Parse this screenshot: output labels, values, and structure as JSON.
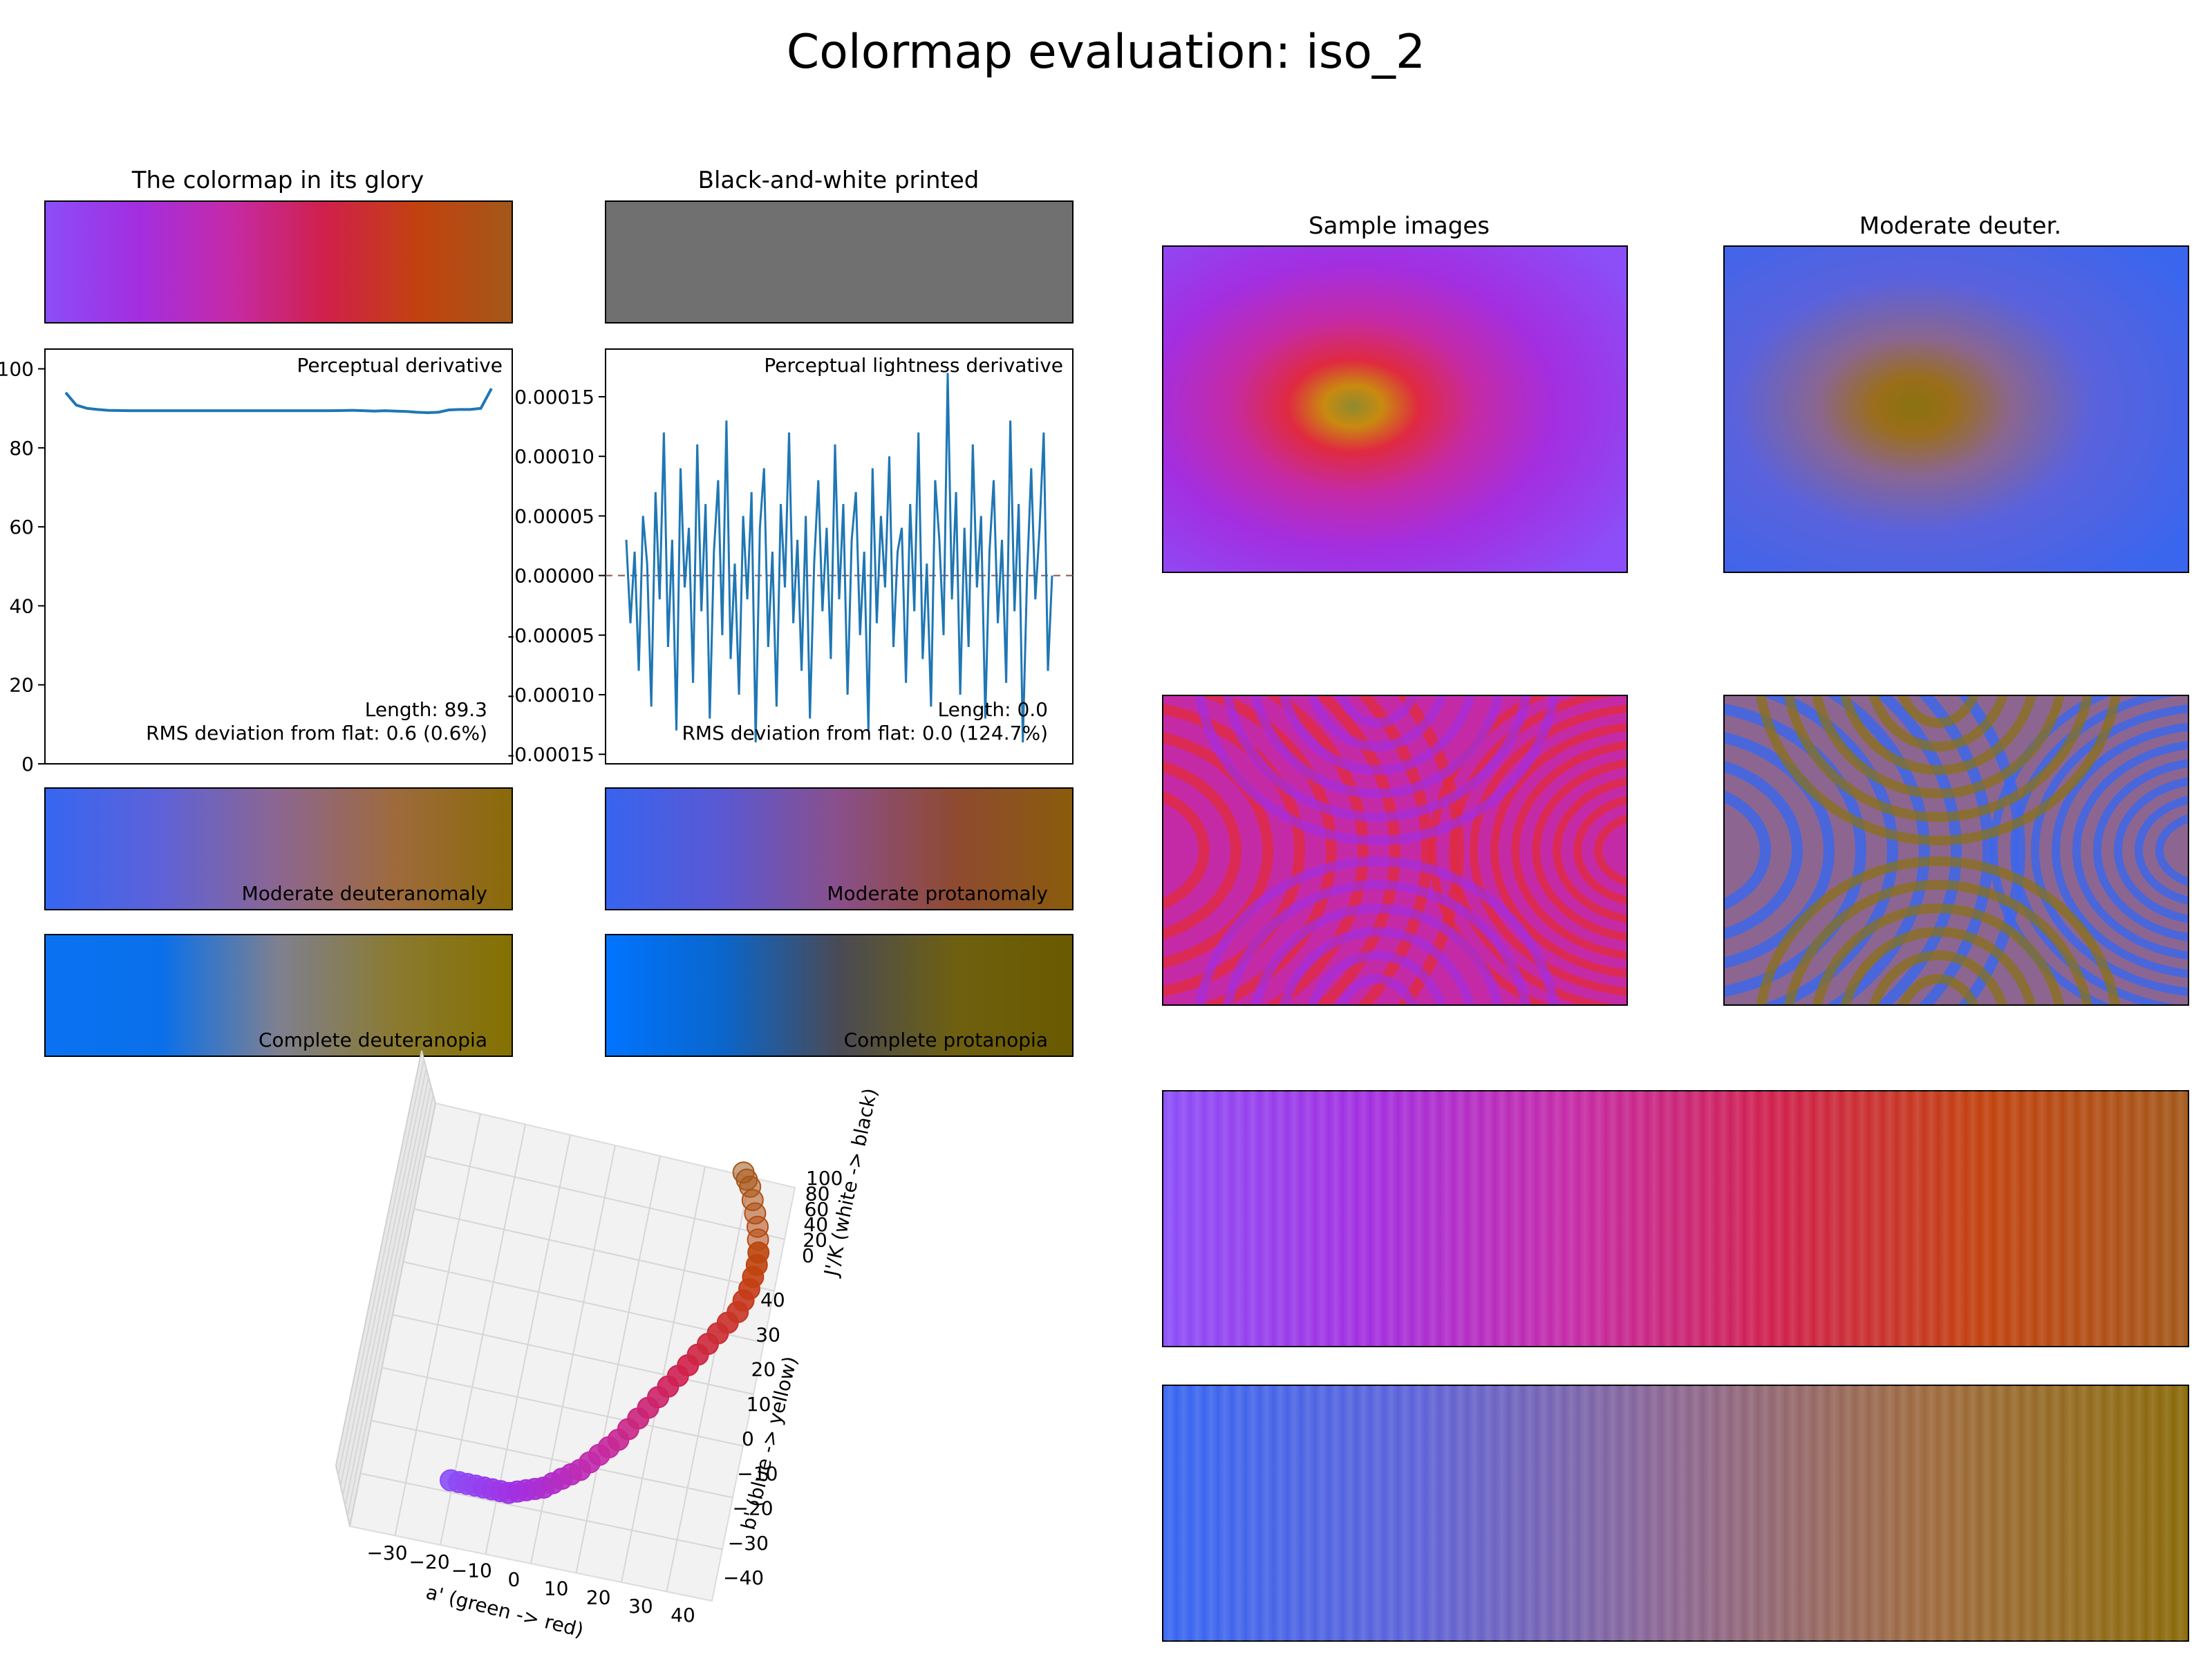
{
  "figure": {
    "suptitle": "Colormap evaluation: iso_2",
    "panel_titles": {
      "glory": "The colormap in its glory",
      "bw": "Black-and-white printed",
      "sample_images": "Sample images",
      "moderate_deuter": "Moderate deuter."
    },
    "strip_labels": {
      "mod_deut": "Moderate deuteranomaly",
      "mod_prot": "Moderate protanomaly",
      "comp_deut": "Complete deuteranopia",
      "comp_prot": "Complete protanopia"
    },
    "colors": {
      "colormap": [
        "#8b4ef8",
        "#a32ee0",
        "#c52aa6",
        "#d0204a",
        "#c2420e",
        "#a3581a"
      ],
      "bw": [
        "#707070",
        "#707070"
      ],
      "mod_deut": [
        "#3666f2",
        "#5e62d8",
        "#8c6690",
        "#9e6a3c",
        "#8a6a08"
      ],
      "mod_prot": [
        "#3764f0",
        "#5a58d2",
        "#8a4f8a",
        "#8f4a30",
        "#8a5c0c"
      ],
      "comp_deut": [
        "#0a72f2",
        "#0a70ea",
        "#7f8090",
        "#8a7a30",
        "#857000"
      ],
      "comp_prot": [
        "#0074ff",
        "#0a66cc",
        "#4a4a55",
        "#6e6010",
        "#6a5a00"
      ],
      "deut_sample_base": "#3a66ee",
      "deut_sample_center": "#987018",
      "line": "#1f77b4",
      "dash": "#8c564b"
    }
  },
  "chart_data": [
    {
      "type": "line",
      "panel": "perceptual_derivative",
      "annotation": "Perceptual derivative",
      "ylim": [
        0,
        105
      ],
      "yticks": [
        "0",
        "20",
        "40",
        "60",
        "80",
        "100"
      ],
      "values": [
        94.0,
        90.8,
        90.0,
        89.7,
        89.5,
        89.45,
        89.4,
        89.4,
        89.4,
        89.4,
        89.4,
        89.4,
        89.4,
        89.4,
        89.4,
        89.4,
        89.4,
        89.4,
        89.4,
        89.4,
        89.4,
        89.4,
        89.4,
        89.4,
        89.4,
        89.4,
        89.45,
        89.5,
        89.4,
        89.3,
        89.4,
        89.3,
        89.2,
        89.0,
        88.9,
        89.0,
        89.6,
        89.7,
        89.7,
        90.0,
        95.0
      ],
      "length_text": "Length: 89.3",
      "rms_text": "RMS deviation from flat: 0.6 (0.6%)"
    },
    {
      "type": "line",
      "panel": "perceptual_lightness_derivative",
      "annotation": "Perceptual lightness derivative",
      "ylim": [
        -0.000158,
        0.00019
      ],
      "yticks": [
        "0.00015",
        "0.00010",
        "0.00005",
        "0.00000",
        "-0.00005",
        "-0.00010",
        "-0.00015"
      ],
      "ytick_values": [
        0.00015,
        0.0001,
        5e-05,
        0.0,
        -5e-05,
        -0.0001,
        -0.00015
      ],
      "values": [
        3e-05,
        -4e-05,
        2e-05,
        -8e-05,
        5e-05,
        1e-05,
        -0.00011,
        7e-05,
        -2e-05,
        0.00012,
        -6e-05,
        3e-05,
        -0.00013,
        9e-05,
        -1e-05,
        4e-05,
        -9e-05,
        0.00011,
        -3e-05,
        6e-05,
        -0.00012,
        2e-05,
        8e-05,
        -5e-05,
        0.00013,
        -7e-05,
        1e-05,
        -0.0001,
        5e-05,
        -2e-05,
        7e-05,
        -0.00014,
        4e-05,
        9e-05,
        -6e-05,
        2e-05,
        -0.00011,
        6e-05,
        -1e-05,
        0.00012,
        -4e-05,
        3e-05,
        -8e-05,
        5e-05,
        -0.00012,
        1e-05,
        8e-05,
        -3e-05,
        4e-05,
        -7e-05,
        0.00011,
        -2e-05,
        6e-05,
        -0.0001,
        3e-05,
        7e-05,
        -5e-05,
        2e-05,
        -0.00013,
        9e-05,
        -4e-05,
        5e-05,
        -1e-05,
        0.0001,
        -6e-05,
        2e-05,
        4e-05,
        -9e-05,
        6e-05,
        -3e-05,
        0.00012,
        -7e-05,
        1e-05,
        -0.00011,
        8e-05,
        3e-05,
        -5e-05,
        0.00017,
        -2e-05,
        7e-05,
        -0.0001,
        4e-05,
        -6e-05,
        0.00011,
        -1e-05,
        5e-05,
        -0.00012,
        2e-05,
        8e-05,
        -4e-05,
        3e-05,
        -9e-05,
        0.00013,
        -3e-05,
        6e-05,
        -0.00014,
        0.0,
        9e-05,
        -2e-05,
        4e-05,
        0.00012,
        -8e-05,
        0.0
      ],
      "baseline": 0.0,
      "length_text": "Length: 0.0",
      "rms_text": "RMS deviation from flat: 0.0 (124.7%)"
    },
    {
      "type": "scatter",
      "panel": "3d_colorspace",
      "xlabel": "a' (green -> red)",
      "ylabel": "b' (blue -> yellow)",
      "zlabel": "J'/K (white -> black)",
      "a_ticks": [
        "−30",
        "−20",
        "−10",
        "0",
        "10",
        "20",
        "30",
        "40"
      ],
      "b_ticks": [
        "40",
        "30",
        "20",
        "10",
        "0",
        "−10",
        "−20",
        "−30",
        "−40"
      ],
      "j_ticks": [
        "100",
        "80",
        "60",
        "40",
        "20",
        "0"
      ],
      "trajectory_a": [
        -25,
        -23,
        -21,
        -19,
        -17,
        -15,
        -13,
        -11,
        -9,
        -7,
        -5,
        -3,
        -1,
        1,
        3,
        5,
        7,
        9,
        11,
        13,
        15,
        17,
        19,
        21,
        23,
        25,
        27,
        29,
        31,
        33,
        35,
        37,
        38,
        39,
        39.5,
        40,
        40,
        39.5,
        39,
        38,
        37,
        36,
        35,
        34
      ],
      "trajectory_b": [
        -30,
        -30,
        -30,
        -30,
        -30,
        -30,
        -30,
        -30,
        -29.5,
        -29,
        -28.5,
        -28,
        -27,
        -26,
        -25,
        -24,
        -22.5,
        -21,
        -19.5,
        -18,
        -16,
        -14,
        -12,
        -10,
        -8,
        -6,
        -4,
        -2,
        0,
        2,
        4,
        6,
        8,
        10,
        12,
        14,
        16,
        18,
        20,
        22,
        24,
        26,
        27,
        28
      ]
    }
  ]
}
